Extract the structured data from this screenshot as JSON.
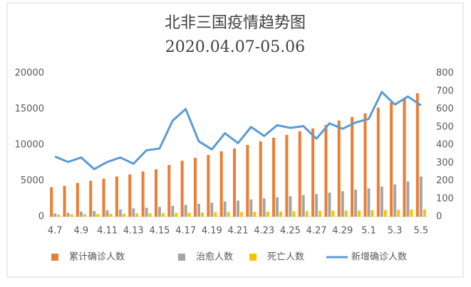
{
  "chart_data": {
    "type": "bar-line",
    "title": "北非三国疫情趋势图",
    "subtitle": "2020.04.07-05.06",
    "categories": [
      "4.7",
      null,
      "4.9",
      null,
      "4.11",
      null,
      "4.13",
      null,
      "4.15",
      null,
      "4.17",
      null,
      "4.19",
      null,
      "4.21",
      null,
      "4.23",
      null,
      "4.25",
      null,
      "4.27",
      null,
      "4.29",
      null,
      "5.1",
      null,
      "5.3",
      null,
      "5.5"
    ],
    "series": [
      {
        "name": "累计确诊人数",
        "color": "#ed7d31",
        "values": [
          4100,
          4300,
          4700,
          5000,
          5300,
          5600,
          5900,
          6300,
          6600,
          7200,
          7800,
          8200,
          8600,
          9100,
          9500,
          10000,
          10500,
          11000,
          11400,
          11900,
          12300,
          12800,
          13400,
          13900,
          14400,
          15200,
          15900,
          16500,
          17200
        ]
      },
      {
        "name": "治愈人数",
        "color": "#a5a5a5",
        "values": [
          450,
          550,
          700,
          800,
          900,
          1000,
          1150,
          1250,
          1350,
          1500,
          1650,
          1800,
          1950,
          2100,
          2250,
          2400,
          2550,
          2700,
          2850,
          3000,
          3150,
          3350,
          3550,
          3750,
          3950,
          4200,
          4500,
          4900,
          5600
        ]
      },
      {
        "name": "死亡人数",
        "color": "#ffc000",
        "values": [
          300,
          320,
          350,
          380,
          400,
          420,
          450,
          480,
          500,
          530,
          560,
          580,
          600,
          630,
          650,
          680,
          700,
          720,
          750,
          770,
          800,
          820,
          850,
          870,
          900,
          930,
          960,
          1000,
          1000
        ]
      },
      {
        "name": "新增确诊人数",
        "color": "#5b9bd5",
        "type": "line",
        "axis": "y2",
        "values": [
          335,
          305,
          330,
          265,
          305,
          330,
          295,
          370,
          380,
          535,
          600,
          420,
          375,
          465,
          410,
          500,
          450,
          510,
          495,
          505,
          435,
          520,
          490,
          525,
          545,
          695,
          625,
          670,
          620
        ]
      }
    ],
    "ylim": [
      0,
      20000
    ],
    "yticks": [
      0,
      5000,
      10000,
      15000,
      20000
    ],
    "y2lim": [
      0,
      800
    ],
    "y2ticks": [
      0,
      100,
      200,
      300,
      400,
      500,
      600,
      700,
      800
    ],
    "grid": false
  }
}
